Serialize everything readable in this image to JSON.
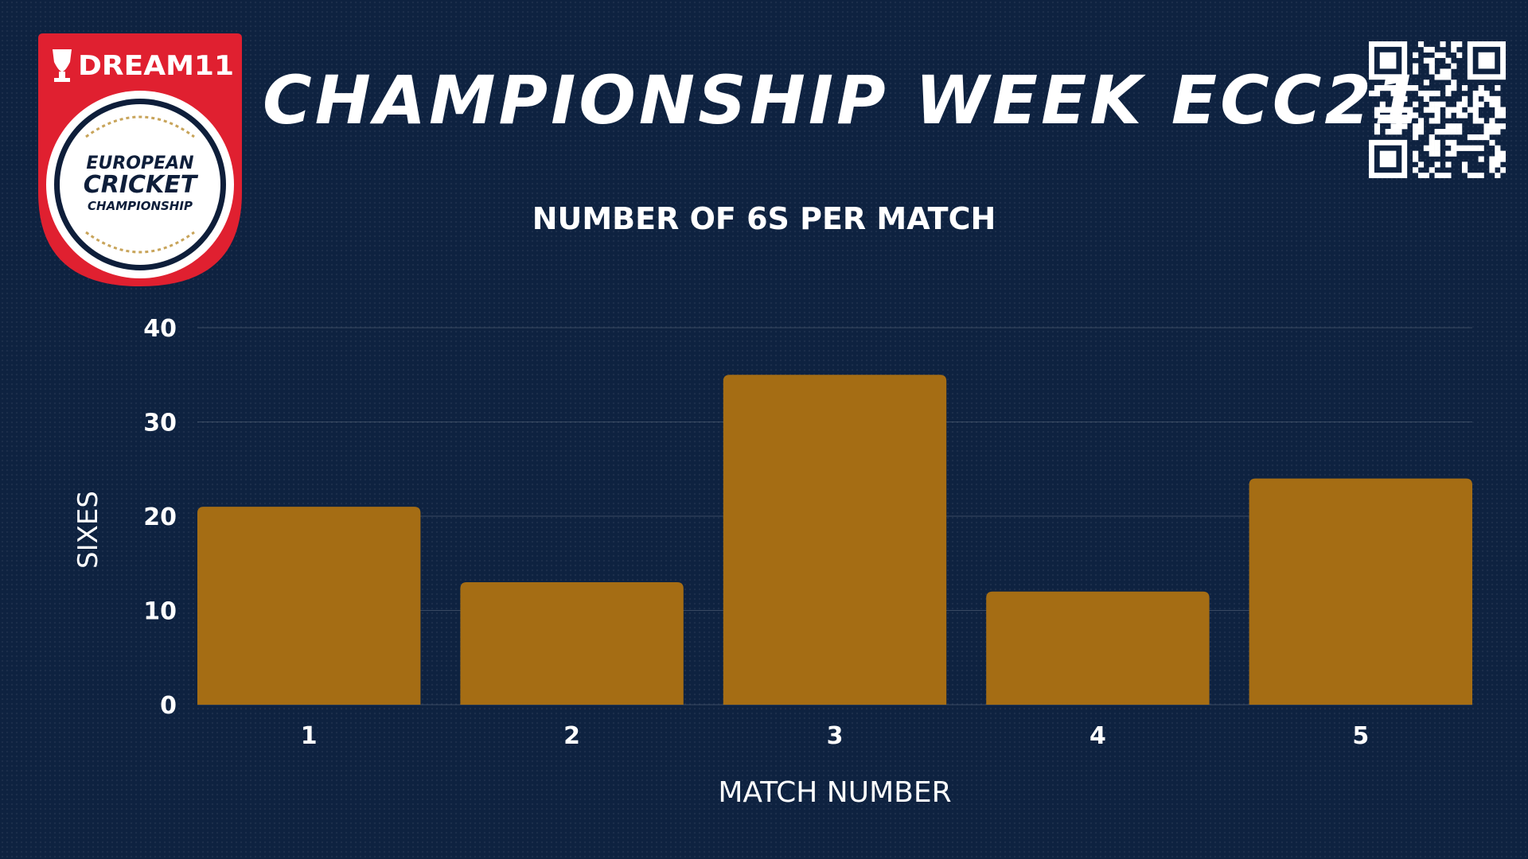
{
  "header": {
    "title": "CHAMPIONSHIP WEEK ECC21"
  },
  "logo": {
    "sponsor_text": "DREAM11",
    "line1": "EUROPEAN",
    "line2": "CRICKET",
    "line3": "CHAMPIONSHIP"
  },
  "colors": {
    "background": "#0e2240",
    "bar": "#a56d14",
    "logo_red": "#e02030",
    "text": "#ffffff"
  },
  "chart_data": {
    "type": "bar",
    "title": "NUMBER OF 6S PER MATCH",
    "xlabel": "MATCH NUMBER",
    "ylabel": "SIXES",
    "categories": [
      "1",
      "2",
      "3",
      "4",
      "5"
    ],
    "values": [
      21,
      13,
      35,
      12,
      24
    ],
    "ylim": [
      0,
      40
    ],
    "yticks": [
      "0",
      "10",
      "20",
      "30",
      "40"
    ],
    "grid": true,
    "legend": "none"
  }
}
